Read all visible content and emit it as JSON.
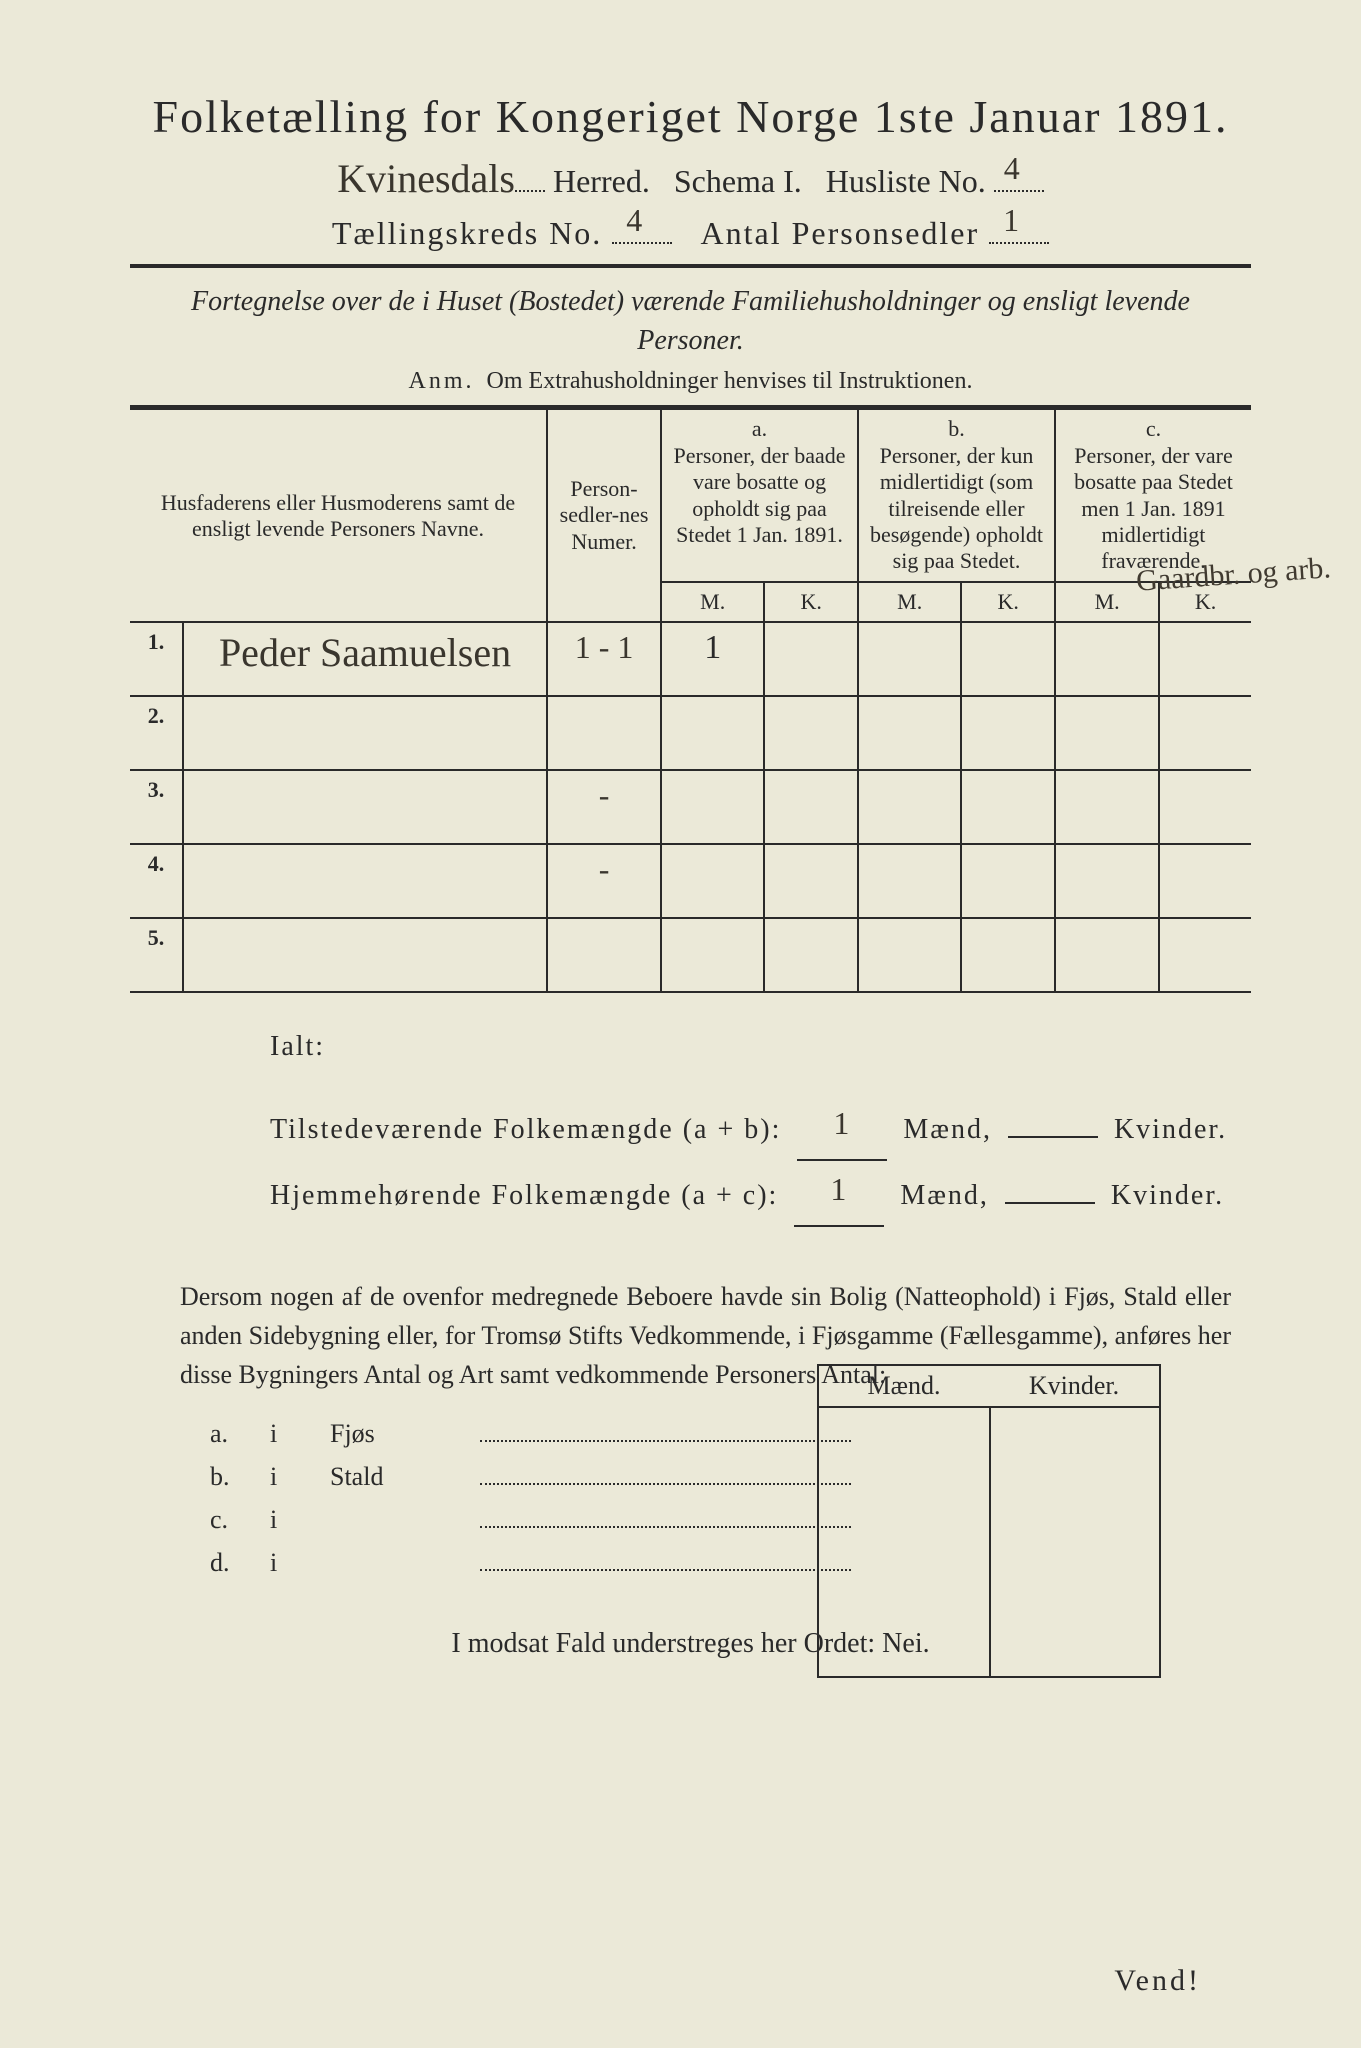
{
  "title": "Folketælling for Kongeriget Norge 1ste Januar 1891.",
  "header": {
    "herred_value": "Kvinesdals",
    "herred_label": "Herred.",
    "schema_label": "Schema I.",
    "husliste_label": "Husliste No.",
    "husliste_value": "4",
    "kreds_label": "Tællingskreds No.",
    "kreds_value": "4",
    "antal_label": "Antal Personsedler",
    "antal_value": "1"
  },
  "intro": "Fortegnelse over de i Huset (Bostedet) værende Familiehusholdninger og ensligt levende Personer.",
  "anm_label": "Anm.",
  "anm_text": "Om Extrahusholdninger henvises til Instruktionen.",
  "columns": {
    "name": "Husfaderens eller Husmoderens samt de ensligt levende Personers Navne.",
    "numer": "Person-sedler-nes Numer.",
    "a_label": "a.",
    "a_text": "Personer, der baade vare bosatte og opholdt sig paa Stedet 1 Jan. 1891.",
    "b_label": "b.",
    "b_text": "Personer, der kun midlertidigt (som tilreisende eller besøgende) opholdt sig paa Stedet.",
    "c_label": "c.",
    "c_text": "Personer, der vare bosatte paa Stedet men 1 Jan. 1891 midlertidigt fraværende.",
    "m": "M.",
    "k": "K."
  },
  "margin_note": "Gaardbr.\nog\narb.",
  "rows": [
    {
      "n": "1.",
      "name": "Peder Saamuelsen",
      "numer": "1 - 1",
      "a_m": "1",
      "a_k": "",
      "b_m": "",
      "b_k": "",
      "c_m": "",
      "c_k": ""
    },
    {
      "n": "2.",
      "name": "",
      "numer": "",
      "a_m": "",
      "a_k": "",
      "b_m": "",
      "b_k": "",
      "c_m": "",
      "c_k": ""
    },
    {
      "n": "3.",
      "name": "",
      "numer": "-",
      "a_m": "",
      "a_k": "",
      "b_m": "",
      "b_k": "",
      "c_m": "",
      "c_k": ""
    },
    {
      "n": "4.",
      "name": "",
      "numer": "-",
      "a_m": "",
      "a_k": "",
      "b_m": "",
      "b_k": "",
      "c_m": "",
      "c_k": ""
    },
    {
      "n": "5.",
      "name": "",
      "numer": "",
      "a_m": "",
      "a_k": "",
      "b_m": "",
      "b_k": "",
      "c_m": "",
      "c_k": ""
    }
  ],
  "totals": {
    "ialt": "Ialt:",
    "line1_label": "Tilstedeværende Folkemængde (a + b):",
    "line1_m": "1",
    "line2_label": "Hjemmehørende Folkemængde (a + c):",
    "line2_m": "1",
    "maend": "Mænd,",
    "kvinder": "Kvinder."
  },
  "para": "Dersom nogen af de ovenfor medregnede Beboere havde sin Bolig (Natteophold) i Fjøs, Stald eller anden Sidebygning eller, for Tromsø Stifts Vedkommende, i Fjøsgamme (Fællesgamme), anføres her disse Bygningers Antal og Art samt vedkommende Personers Antal:",
  "sub": {
    "maend": "Mænd.",
    "kvinder": "Kvinder.",
    "rows": [
      {
        "a": "a.",
        "i": "i",
        "t": "Fjøs"
      },
      {
        "a": "b.",
        "i": "i",
        "t": "Stald"
      },
      {
        "a": "c.",
        "i": "i",
        "t": ""
      },
      {
        "a": "d.",
        "i": "i",
        "t": ""
      }
    ]
  },
  "nei": "I modsat Fald understreges her Ordet: Nei.",
  "vend": "Vend!"
}
